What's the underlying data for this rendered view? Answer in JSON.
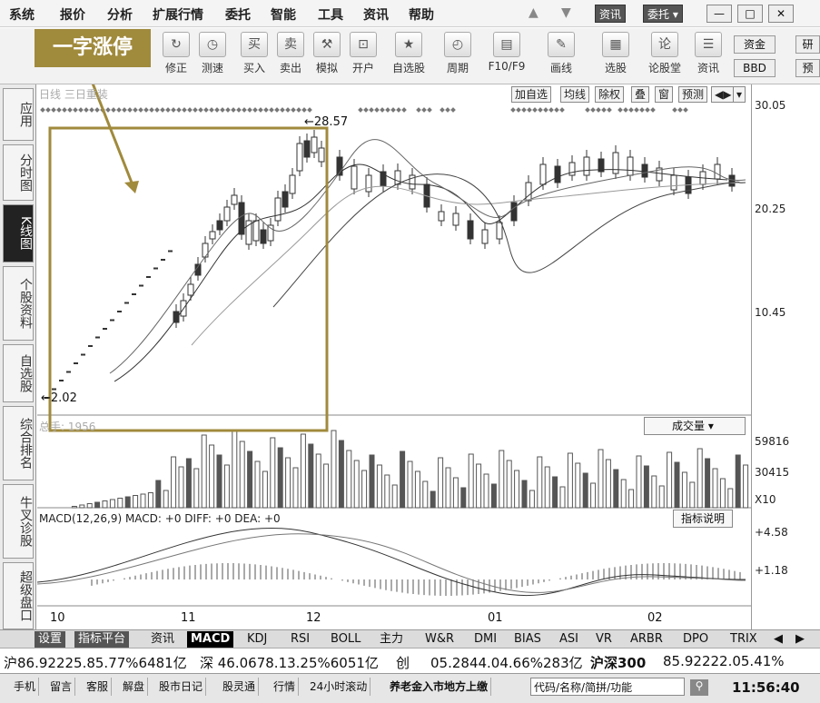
{
  "menu": {
    "items": [
      "系统",
      "报价",
      "分析",
      "扩展行情",
      "委托",
      "智能",
      "工具",
      "资讯",
      "帮助"
    ],
    "top_tabs": [
      "资讯",
      "委托 ▾"
    ],
    "window_controls": [
      "—",
      "□",
      "✕"
    ]
  },
  "toolbar": {
    "buttons": [
      "修正",
      "测速",
      "买入",
      "卖出",
      "模拟",
      "开户",
      "自选股",
      "周期",
      "F10/F9",
      "画线",
      "选股",
      "论股堂",
      "资讯"
    ],
    "right": [
      "资金",
      "BBD",
      "研",
      "预"
    ]
  },
  "annotation": {
    "label": "一字涨停"
  },
  "sidebar": {
    "items": [
      "应用",
      "分时图",
      "K线图",
      "个股资料",
      "自选股",
      "综合排名",
      "牛叉诊股",
      "超级盘口"
    ]
  },
  "chart": {
    "title": "日线 三日重装",
    "buttons": [
      "加自选",
      "均线",
      "除权",
      "叠",
      "窗",
      "预测",
      "◀▶",
      "▾"
    ],
    "high_label": "←28.57",
    "low_label": "←2.02",
    "y_labels": [
      "30.05",
      "20.25",
      "10.45"
    ],
    "volume_header": "总手: 1956",
    "volume_dropdown": "成交量 ▾",
    "volume_labels": [
      "59816",
      "30415",
      "X10"
    ],
    "macd_header": "MACD(12,26,9) MACD: +0 DIFF: +0 DEA: +0",
    "macd_button": "指标说明",
    "macd_labels": [
      "+4.58",
      "+1.18"
    ],
    "x_labels": [
      "10",
      "11",
      "12",
      "01",
      "02"
    ]
  },
  "chart_data": {
    "type": "candlestick",
    "x": [
      "10",
      "11",
      "12",
      "01",
      "02"
    ],
    "ylim": [
      2.02,
      30.05
    ],
    "high": 28.57,
    "low": 2.02,
    "volume_ylim": [
      0,
      59816
    ],
    "macd_ylim": [
      -1.2,
      4.58
    ]
  },
  "tabs": {
    "items": [
      "设置",
      "指标平台",
      "资讯",
      "MACD",
      "KDJ",
      "RSI",
      "BOLL",
      "主力",
      "W&R",
      "DMI",
      "BIAS",
      "ASI",
      "VR",
      "ARBR",
      "DPO",
      "TRIX",
      "◀",
      "▶"
    ]
  },
  "ticker": {
    "text1": "沪86.92225.85.77%6481亿",
    "text2": "深 46.0678.13.25%6051亿",
    "text3": "创",
    "text4": "05.2844.04.66%283亿",
    "text5": "沪深300",
    "text6": "85.92222.05.41%"
  },
  "status": {
    "items": [
      "手机",
      "留言",
      "客服",
      "解盘",
      "股市日记",
      "股灵通",
      "行情",
      "24小时滚动",
      "养老金入市地方上缴",
      "代码/名称/简拼/功能"
    ],
    "time": "11:56:40"
  },
  "colors": {
    "annotation": "#a08a3c",
    "candle": "#333333",
    "ma": "#555555"
  }
}
